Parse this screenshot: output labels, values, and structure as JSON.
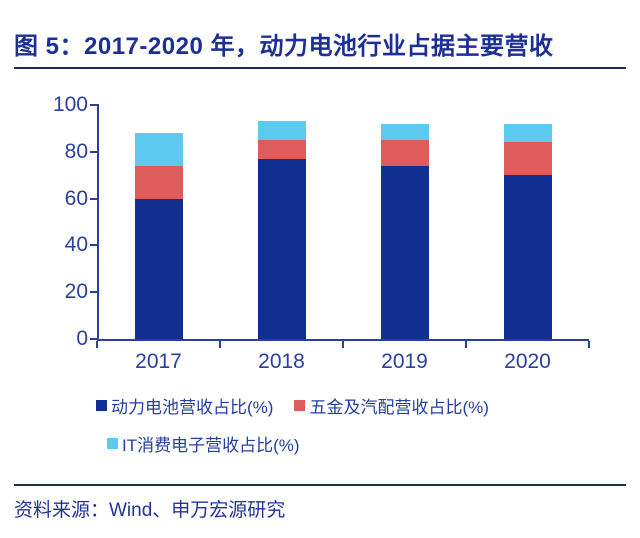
{
  "header": {
    "title": "图 5：2017-2020 年，动力电池行业占据主要营收"
  },
  "chart_data": {
    "type": "bar",
    "stacked": true,
    "title": "图 5：2017-2020 年，动力电池行业占据主要营收",
    "categories": [
      "2017",
      "2018",
      "2019",
      "2020"
    ],
    "series": [
      {
        "name": "动力电池营收占比(%)",
        "color": "#112F91",
        "values": [
          60,
          77,
          74,
          70
        ]
      },
      {
        "name": "五金及汽配营收占比(%)",
        "color": "#DE5C5C",
        "values": [
          14,
          8,
          11,
          14
        ]
      },
      {
        "name": "IT消费电子营收占比(%)",
        "color": "#5CC9F1",
        "values": [
          14,
          8,
          7,
          8
        ]
      }
    ],
    "stack_totals": [
      88,
      93,
      92,
      92
    ],
    "xlabel": "",
    "ylabel": "",
    "ylim": [
      0,
      100
    ],
    "yticks": [
      0,
      20,
      40,
      60,
      80,
      100
    ],
    "grid": false,
    "legend_position": "bottom"
  },
  "colors": {
    "title_text": "#1B2F96",
    "axis_text": "#2B3F9E",
    "axis_line": "#2B3F9E",
    "legend_text": "#2440A0",
    "title_rule": "#1C2A6B",
    "source_rule": "#243244",
    "source_text": "#21339B",
    "background": "#FFFFFF"
  },
  "footer": {
    "source": "资料来源：Wind、申万宏源研究"
  }
}
